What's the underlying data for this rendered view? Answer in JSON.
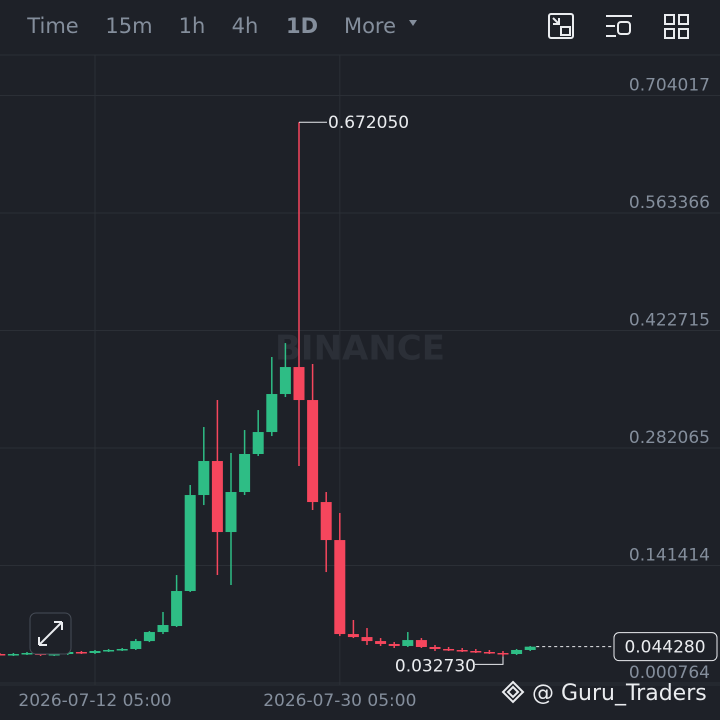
{
  "toolbar": {
    "tabs": [
      "Time",
      "15m",
      "1h",
      "4h",
      "1D",
      "More"
    ],
    "active": "1D"
  },
  "footer": "@ Guru_Traders",
  "chart_data": {
    "type": "candlestick",
    "watermark": "BINANCE",
    "categories": [
      null,
      null,
      null,
      null,
      null,
      null,
      null,
      "2026-07-12 05:00",
      null,
      null,
      null,
      null,
      null,
      null,
      null,
      null,
      null,
      null,
      null,
      null,
      null,
      null,
      null,
      null,
      null,
      "2026-07-30 05:00",
      null,
      null,
      null,
      null,
      null,
      null,
      null,
      null,
      null,
      null,
      null,
      null,
      null,
      null
    ],
    "open": [
      0.0355,
      0.0343,
      0.0355,
      0.0367,
      0.0343,
      0.0355,
      0.0379,
      0.0367,
      0.0391,
      0.0403,
      0.0415,
      0.051,
      0.0618,
      0.069,
      0.1109,
      0.2258,
      0.2665,
      0.1815,
      0.2294,
      0.2749,
      0.3012,
      0.3467,
      0.379,
      0.3395,
      0.2174,
      0.1719,
      0.0594,
      0.0558,
      0.051,
      0.0475,
      0.0451,
      0.0522,
      0.0439,
      0.0415,
      0.0403,
      0.0391,
      0.0379,
      0.0367,
      0.0355,
      0.0403
    ],
    "high": [
      0.0367,
      0.0367,
      0.0379,
      0.0379,
      0.0367,
      0.0391,
      0.0391,
      0.0403,
      0.0415,
      0.0427,
      0.0535,
      0.063,
      0.0858,
      0.13,
      0.2378,
      0.3072,
      0.3395,
      0.2761,
      0.3036,
      0.3275,
      0.391,
      0.4077,
      0.67205,
      0.3826,
      0.2294,
      0.2043,
      0.0762,
      0.0666,
      0.0546,
      0.0499,
      0.0618,
      0.0546,
      0.0463,
      0.0439,
      0.0427,
      0.0415,
      0.0403,
      0.0391,
      0.0415,
      0.0451
    ],
    "low": [
      0.0343,
      0.0331,
      0.0343,
      0.0331,
      0.0331,
      0.0343,
      0.0355,
      0.0355,
      0.0379,
      0.0391,
      0.0403,
      0.0498,
      0.0594,
      0.0678,
      0.1097,
      0.2138,
      0.13,
      0.1181,
      0.2258,
      0.2725,
      0.2964,
      0.3431,
      0.2605,
      0.2078,
      0.1336,
      0.057,
      0.0546,
      0.0463,
      0.0451,
      0.0427,
      0.0439,
      0.0427,
      0.0391,
      0.0391,
      0.0379,
      0.0367,
      0.0355,
      0.03273,
      0.0343,
      0.0391
    ],
    "close": [
      0.0343,
      0.0355,
      0.0367,
      0.0343,
      0.0355,
      0.0379,
      0.0367,
      0.0391,
      0.0403,
      0.0415,
      0.051,
      0.0618,
      0.0702,
      0.1109,
      0.2258,
      0.2665,
      0.1815,
      0.2294,
      0.2749,
      0.3012,
      0.3467,
      0.379,
      0.3395,
      0.2174,
      0.1719,
      0.0594,
      0.0558,
      0.051,
      0.0475,
      0.0451,
      0.0522,
      0.0439,
      0.0415,
      0.0403,
      0.0391,
      0.0379,
      0.0367,
      0.0355,
      0.0403,
      0.04428
    ],
    "up_color": "#2ebd85",
    "down_color": "#f6465d",
    "ylim": [
      -0.0016,
      0.7525
    ],
    "yticks": [
      0.000764,
      0.141414,
      0.282065,
      0.422715,
      0.563366,
      0.704017
    ],
    "grid": true,
    "annotations": [
      {
        "text": "0.672050",
        "value": 0.67205
      },
      {
        "text": "0.032730",
        "value": 0.03273
      }
    ],
    "last_price": {
      "text": "0.044280",
      "value": 0.04428
    }
  }
}
